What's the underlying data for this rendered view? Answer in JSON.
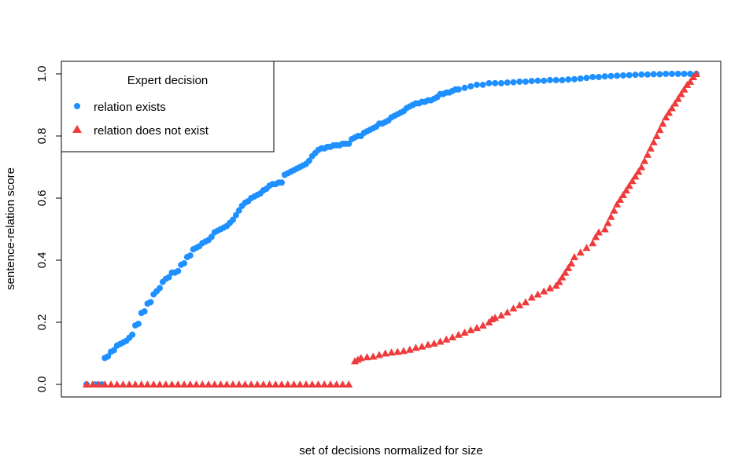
{
  "chart_data": {
    "type": "scatter",
    "title": "",
    "xlabel": "set of decisions normalized for size",
    "ylabel": "sentence-relation score",
    "xlim": [
      0,
      1
    ],
    "ylim": [
      0,
      1
    ],
    "yticks": [
      "0.0",
      "0.2",
      "0.4",
      "0.6",
      "0.8",
      "1.0"
    ],
    "grid": false,
    "legend": {
      "title": "Expert decision",
      "position": "top-left",
      "entries": [
        "relation exists",
        "relation does not exist"
      ]
    },
    "colors": {
      "exists": "#1e90ff",
      "not_exists": "#ef3b3b"
    },
    "series": [
      {
        "name": "relation exists",
        "marker": "circle",
        "color": "#1e90ff",
        "points": [
          [
            0.0,
            0.0
          ],
          [
            0.015,
            0.0
          ],
          [
            0.025,
            0.0
          ],
          [
            0.03,
            0.085
          ],
          [
            0.035,
            0.09
          ],
          [
            0.04,
            0.105
          ],
          [
            0.045,
            0.11
          ],
          [
            0.05,
            0.125
          ],
          [
            0.055,
            0.13
          ],
          [
            0.06,
            0.135
          ],
          [
            0.065,
            0.14
          ],
          [
            0.07,
            0.15
          ],
          [
            0.075,
            0.16
          ],
          [
            0.08,
            0.19
          ],
          [
            0.085,
            0.195
          ],
          [
            0.09,
            0.23
          ],
          [
            0.095,
            0.235
          ],
          [
            0.1,
            0.26
          ],
          [
            0.105,
            0.265
          ],
          [
            0.11,
            0.29
          ],
          [
            0.115,
            0.3
          ],
          [
            0.12,
            0.31
          ],
          [
            0.125,
            0.33
          ],
          [
            0.13,
            0.34
          ],
          [
            0.135,
            0.345
          ],
          [
            0.14,
            0.36
          ],
          [
            0.145,
            0.36
          ],
          [
            0.15,
            0.365
          ],
          [
            0.155,
            0.385
          ],
          [
            0.16,
            0.39
          ],
          [
            0.165,
            0.41
          ],
          [
            0.17,
            0.415
          ],
          [
            0.175,
            0.435
          ],
          [
            0.18,
            0.44
          ],
          [
            0.185,
            0.445
          ],
          [
            0.19,
            0.455
          ],
          [
            0.195,
            0.46
          ],
          [
            0.2,
            0.465
          ],
          [
            0.205,
            0.475
          ],
          [
            0.21,
            0.49
          ],
          [
            0.215,
            0.495
          ],
          [
            0.22,
            0.5
          ],
          [
            0.225,
            0.505
          ],
          [
            0.23,
            0.51
          ],
          [
            0.235,
            0.52
          ],
          [
            0.24,
            0.53
          ],
          [
            0.245,
            0.545
          ],
          [
            0.25,
            0.56
          ],
          [
            0.255,
            0.575
          ],
          [
            0.26,
            0.585
          ],
          [
            0.265,
            0.59
          ],
          [
            0.27,
            0.6
          ],
          [
            0.275,
            0.605
          ],
          [
            0.28,
            0.61
          ],
          [
            0.285,
            0.615
          ],
          [
            0.29,
            0.625
          ],
          [
            0.295,
            0.63
          ],
          [
            0.3,
            0.64
          ],
          [
            0.305,
            0.645
          ],
          [
            0.31,
            0.645
          ],
          [
            0.315,
            0.65
          ],
          [
            0.32,
            0.65
          ],
          [
            0.325,
            0.675
          ],
          [
            0.33,
            0.68
          ],
          [
            0.335,
            0.685
          ],
          [
            0.34,
            0.69
          ],
          [
            0.345,
            0.695
          ],
          [
            0.35,
            0.7
          ],
          [
            0.355,
            0.705
          ],
          [
            0.36,
            0.71
          ],
          [
            0.365,
            0.72
          ],
          [
            0.37,
            0.735
          ],
          [
            0.375,
            0.745
          ],
          [
            0.38,
            0.755
          ],
          [
            0.385,
            0.76
          ],
          [
            0.39,
            0.76
          ],
          [
            0.395,
            0.765
          ],
          [
            0.4,
            0.765
          ],
          [
            0.405,
            0.77
          ],
          [
            0.41,
            0.77
          ],
          [
            0.415,
            0.77
          ],
          [
            0.42,
            0.775
          ],
          [
            0.425,
            0.775
          ],
          [
            0.43,
            0.775
          ],
          [
            0.435,
            0.79
          ],
          [
            0.44,
            0.795
          ],
          [
            0.445,
            0.8
          ],
          [
            0.45,
            0.8
          ],
          [
            0.455,
            0.81
          ],
          [
            0.46,
            0.815
          ],
          [
            0.465,
            0.82
          ],
          [
            0.47,
            0.825
          ],
          [
            0.475,
            0.83
          ],
          [
            0.48,
            0.84
          ],
          [
            0.485,
            0.84
          ],
          [
            0.49,
            0.845
          ],
          [
            0.495,
            0.85
          ],
          [
            0.5,
            0.86
          ],
          [
            0.505,
            0.865
          ],
          [
            0.51,
            0.87
          ],
          [
            0.515,
            0.875
          ],
          [
            0.52,
            0.88
          ],
          [
            0.525,
            0.89
          ],
          [
            0.53,
            0.895
          ],
          [
            0.535,
            0.9
          ],
          [
            0.54,
            0.905
          ],
          [
            0.545,
            0.905
          ],
          [
            0.55,
            0.91
          ],
          [
            0.555,
            0.91
          ],
          [
            0.56,
            0.915
          ],
          [
            0.565,
            0.915
          ],
          [
            0.57,
            0.92
          ],
          [
            0.575,
            0.925
          ],
          [
            0.58,
            0.935
          ],
          [
            0.585,
            0.935
          ],
          [
            0.59,
            0.94
          ],
          [
            0.595,
            0.94
          ],
          [
            0.6,
            0.945
          ],
          [
            0.605,
            0.95
          ],
          [
            0.61,
            0.95
          ],
          [
            0.62,
            0.955
          ],
          [
            0.63,
            0.96
          ],
          [
            0.64,
            0.965
          ],
          [
            0.65,
            0.965
          ],
          [
            0.66,
            0.97
          ],
          [
            0.67,
            0.97
          ],
          [
            0.68,
            0.97
          ],
          [
            0.69,
            0.972
          ],
          [
            0.7,
            0.973
          ],
          [
            0.71,
            0.975
          ],
          [
            0.72,
            0.975
          ],
          [
            0.73,
            0.977
          ],
          [
            0.74,
            0.978
          ],
          [
            0.75,
            0.978
          ],
          [
            0.76,
            0.98
          ],
          [
            0.77,
            0.98
          ],
          [
            0.78,
            0.98
          ],
          [
            0.79,
            0.982
          ],
          [
            0.8,
            0.983
          ],
          [
            0.81,
            0.985
          ],
          [
            0.82,
            0.987
          ],
          [
            0.83,
            0.99
          ],
          [
            0.84,
            0.99
          ],
          [
            0.85,
            0.992
          ],
          [
            0.86,
            0.993
          ],
          [
            0.87,
            0.994
          ],
          [
            0.88,
            0.995
          ],
          [
            0.89,
            0.996
          ],
          [
            0.9,
            0.997
          ],
          [
            0.91,
            0.998
          ],
          [
            0.92,
            0.998
          ],
          [
            0.93,
            0.999
          ],
          [
            0.94,
            0.999
          ],
          [
            0.95,
            1.0
          ],
          [
            0.96,
            1.0
          ],
          [
            0.97,
            1.0
          ],
          [
            0.98,
            1.0
          ],
          [
            0.99,
            1.0
          ],
          [
            1.0,
            1.0
          ]
        ]
      },
      {
        "name": "relation does not exist",
        "marker": "triangle",
        "color": "#ef3b3b",
        "points": [
          [
            0.0,
            0.0
          ],
          [
            0.01,
            0.0
          ],
          [
            0.02,
            0.0
          ],
          [
            0.03,
            0.0
          ],
          [
            0.04,
            0.0
          ],
          [
            0.05,
            0.0
          ],
          [
            0.06,
            0.0
          ],
          [
            0.07,
            0.0
          ],
          [
            0.08,
            0.0
          ],
          [
            0.09,
            0.0
          ],
          [
            0.1,
            0.0
          ],
          [
            0.11,
            0.0
          ],
          [
            0.12,
            0.0
          ],
          [
            0.13,
            0.0
          ],
          [
            0.14,
            0.0
          ],
          [
            0.15,
            0.0
          ],
          [
            0.16,
            0.0
          ],
          [
            0.17,
            0.0
          ],
          [
            0.18,
            0.0
          ],
          [
            0.19,
            0.0
          ],
          [
            0.2,
            0.0
          ],
          [
            0.21,
            0.0
          ],
          [
            0.22,
            0.0
          ],
          [
            0.23,
            0.0
          ],
          [
            0.24,
            0.0
          ],
          [
            0.25,
            0.0
          ],
          [
            0.26,
            0.0
          ],
          [
            0.27,
            0.0
          ],
          [
            0.28,
            0.0
          ],
          [
            0.29,
            0.0
          ],
          [
            0.3,
            0.0
          ],
          [
            0.31,
            0.0
          ],
          [
            0.32,
            0.0
          ],
          [
            0.33,
            0.0
          ],
          [
            0.34,
            0.0
          ],
          [
            0.35,
            0.0
          ],
          [
            0.36,
            0.0
          ],
          [
            0.37,
            0.0
          ],
          [
            0.38,
            0.0
          ],
          [
            0.39,
            0.0
          ],
          [
            0.4,
            0.0
          ],
          [
            0.41,
            0.0
          ],
          [
            0.42,
            0.0
          ],
          [
            0.43,
            0.0
          ],
          [
            0.44,
            0.075
          ],
          [
            0.445,
            0.08
          ],
          [
            0.45,
            0.085
          ],
          [
            0.46,
            0.088
          ],
          [
            0.47,
            0.09
          ],
          [
            0.48,
            0.095
          ],
          [
            0.49,
            0.1
          ],
          [
            0.5,
            0.103
          ],
          [
            0.51,
            0.105
          ],
          [
            0.52,
            0.108
          ],
          [
            0.53,
            0.112
          ],
          [
            0.54,
            0.118
          ],
          [
            0.55,
            0.122
          ],
          [
            0.56,
            0.128
          ],
          [
            0.57,
            0.132
          ],
          [
            0.58,
            0.138
          ],
          [
            0.59,
            0.145
          ],
          [
            0.6,
            0.152
          ],
          [
            0.61,
            0.16
          ],
          [
            0.62,
            0.167
          ],
          [
            0.63,
            0.175
          ],
          [
            0.64,
            0.182
          ],
          [
            0.65,
            0.19
          ],
          [
            0.66,
            0.2
          ],
          [
            0.665,
            0.21
          ],
          [
            0.67,
            0.215
          ],
          [
            0.68,
            0.222
          ],
          [
            0.69,
            0.232
          ],
          [
            0.7,
            0.245
          ],
          [
            0.71,
            0.255
          ],
          [
            0.72,
            0.265
          ],
          [
            0.73,
            0.28
          ],
          [
            0.74,
            0.29
          ],
          [
            0.75,
            0.3
          ],
          [
            0.76,
            0.31
          ],
          [
            0.77,
            0.318
          ],
          [
            0.775,
            0.33
          ],
          [
            0.78,
            0.345
          ],
          [
            0.785,
            0.36
          ],
          [
            0.79,
            0.375
          ],
          [
            0.795,
            0.39
          ],
          [
            0.8,
            0.41
          ],
          [
            0.81,
            0.425
          ],
          [
            0.82,
            0.44
          ],
          [
            0.83,
            0.455
          ],
          [
            0.835,
            0.475
          ],
          [
            0.84,
            0.49
          ],
          [
            0.85,
            0.5
          ],
          [
            0.855,
            0.52
          ],
          [
            0.86,
            0.54
          ],
          [
            0.865,
            0.56
          ],
          [
            0.87,
            0.58
          ],
          [
            0.875,
            0.595
          ],
          [
            0.88,
            0.61
          ],
          [
            0.885,
            0.625
          ],
          [
            0.89,
            0.64
          ],
          [
            0.895,
            0.655
          ],
          [
            0.9,
            0.67
          ],
          [
            0.905,
            0.685
          ],
          [
            0.91,
            0.7
          ],
          [
            0.915,
            0.72
          ],
          [
            0.92,
            0.74
          ],
          [
            0.925,
            0.76
          ],
          [
            0.93,
            0.78
          ],
          [
            0.935,
            0.8
          ],
          [
            0.94,
            0.82
          ],
          [
            0.945,
            0.84
          ],
          [
            0.95,
            0.86
          ],
          [
            0.955,
            0.875
          ],
          [
            0.96,
            0.89
          ],
          [
            0.965,
            0.905
          ],
          [
            0.97,
            0.92
          ],
          [
            0.975,
            0.935
          ],
          [
            0.98,
            0.95
          ],
          [
            0.985,
            0.965
          ],
          [
            0.99,
            0.975
          ],
          [
            0.995,
            0.99
          ],
          [
            1.0,
            1.0
          ]
        ]
      }
    ]
  }
}
